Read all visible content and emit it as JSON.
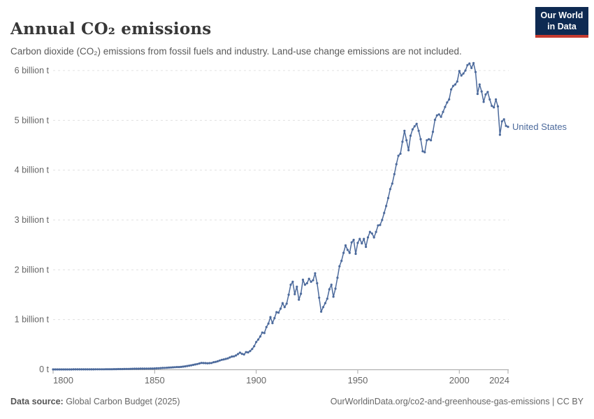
{
  "header": {
    "title": "Annual CO₂ emissions",
    "subtitle": "Carbon dioxide (CO₂) emissions from fossil fuels and industry. Land-use change emissions are not included."
  },
  "logo": {
    "line1": "Our World",
    "line2": "in Data",
    "bg_color": "#0e2a52",
    "accent_color": "#c53a2f"
  },
  "footer": {
    "source_label": "Data source:",
    "source_value": " Global Carbon Budget (2025)",
    "citation": "OurWorldinData.org/co2-and-greenhouse-gas-emissions | CC BY"
  },
  "chart_data": {
    "type": "line",
    "title": "Annual CO₂ emissions",
    "xlabel": "",
    "ylabel": "",
    "x_range": [
      1800,
      2024
    ],
    "x_step": 1,
    "ylim": [
      0,
      6
    ],
    "grid": "dashed-horizontal",
    "y_ticks": [
      {
        "value": 6,
        "label": "6 billion t"
      },
      {
        "value": 5,
        "label": "5 billion t"
      },
      {
        "value": 4,
        "label": "4 billion t"
      },
      {
        "value": 3,
        "label": "3 billion t"
      },
      {
        "value": 2,
        "label": "2 billion t"
      },
      {
        "value": 1,
        "label": "1 billion t"
      },
      {
        "value": 0,
        "label": "0 t"
      }
    ],
    "x_ticks": [
      {
        "year": 1800,
        "label": "1800"
      },
      {
        "year": 1850,
        "label": "1850"
      },
      {
        "year": 1900,
        "label": "1900"
      },
      {
        "year": 1950,
        "label": "1950"
      },
      {
        "year": 2000,
        "label": "2000"
      },
      {
        "year": 2024,
        "label": "2024"
      }
    ],
    "series": [
      {
        "name": "United States",
        "color": "#4c6a9c",
        "unit": "billion t",
        "values": [
          0.0003,
          0.0003,
          0.0004,
          0.0004,
          0.0004,
          0.0005,
          0.0005,
          0.0006,
          0.0006,
          0.0007,
          0.0008,
          0.0009,
          0.001,
          0.0011,
          0.0012,
          0.0013,
          0.0014,
          0.0016,
          0.0017,
          0.0019,
          0.002,
          0.0022,
          0.0024,
          0.0027,
          0.003,
          0.0033,
          0.0036,
          0.004,
          0.0044,
          0.0048,
          0.0053,
          0.0058,
          0.0064,
          0.007,
          0.0077,
          0.0085,
          0.0093,
          0.0102,
          0.0112,
          0.0123,
          0.0135,
          0.014,
          0.0145,
          0.015,
          0.0155,
          0.016,
          0.0165,
          0.017,
          0.0176,
          0.0182,
          0.02,
          0.022,
          0.024,
          0.026,
          0.029,
          0.031,
          0.034,
          0.036,
          0.039,
          0.042,
          0.045,
          0.048,
          0.047,
          0.051,
          0.056,
          0.061,
          0.068,
          0.075,
          0.083,
          0.091,
          0.099,
          0.108,
          0.119,
          0.13,
          0.128,
          0.126,
          0.124,
          0.126,
          0.129,
          0.144,
          0.152,
          0.163,
          0.178,
          0.192,
          0.2,
          0.21,
          0.222,
          0.24,
          0.258,
          0.262,
          0.28,
          0.308,
          0.336,
          0.312,
          0.3,
          0.348,
          0.342,
          0.368,
          0.41,
          0.465,
          0.55,
          0.6,
          0.66,
          0.74,
          0.73,
          0.85,
          0.92,
          1.05,
          0.93,
          1.03,
          1.15,
          1.14,
          1.22,
          1.33,
          1.25,
          1.32,
          1.5,
          1.7,
          1.76,
          1.51,
          1.66,
          1.4,
          1.52,
          1.8,
          1.7,
          1.73,
          1.82,
          1.76,
          1.79,
          1.93,
          1.73,
          1.44,
          1.16,
          1.25,
          1.33,
          1.42,
          1.61,
          1.7,
          1.46,
          1.62,
          1.84,
          2.07,
          2.18,
          2.34,
          2.49,
          2.4,
          2.34,
          2.55,
          2.6,
          2.32,
          2.54,
          2.62,
          2.53,
          2.62,
          2.46,
          2.65,
          2.76,
          2.73,
          2.65,
          2.76,
          2.89,
          2.9,
          3.0,
          3.14,
          3.28,
          3.44,
          3.62,
          3.73,
          3.92,
          4.12,
          4.29,
          4.33,
          4.57,
          4.79,
          4.6,
          4.4,
          4.69,
          4.82,
          4.88,
          4.93,
          4.79,
          4.62,
          4.38,
          4.36,
          4.6,
          4.62,
          4.6,
          4.77,
          5.01,
          5.1,
          5.12,
          5.07,
          5.17,
          5.27,
          5.36,
          5.42,
          5.62,
          5.69,
          5.72,
          5.78,
          5.99,
          5.9,
          5.94,
          6.0,
          6.11,
          6.14,
          6.05,
          6.15,
          5.97,
          5.53,
          5.72,
          5.58,
          5.37,
          5.52,
          5.57,
          5.42,
          5.29,
          5.26,
          5.42,
          5.28,
          4.71,
          4.98,
          5.02,
          4.89,
          4.87
        ]
      }
    ],
    "legend_position": "end-of-line-label",
    "colors": {
      "gridline": "#e0e0e0",
      "axis": "#a5a5a5",
      "tick_label": "#666666"
    }
  }
}
